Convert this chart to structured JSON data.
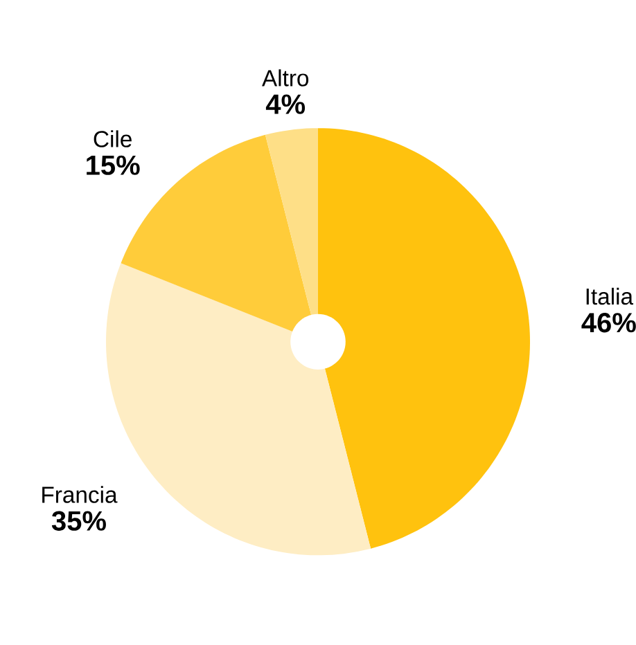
{
  "chart_data": {
    "type": "pie",
    "categories": [
      "Italia",
      "Francia",
      "Cile",
      "Altro"
    ],
    "values": [
      46,
      35,
      15,
      4
    ],
    "value_labels": [
      "46%",
      "35%",
      "15%",
      "4%"
    ],
    "colors": [
      "#ffc20e",
      "#feedc4",
      "#ffcc3a",
      "#fedf87"
    ]
  }
}
